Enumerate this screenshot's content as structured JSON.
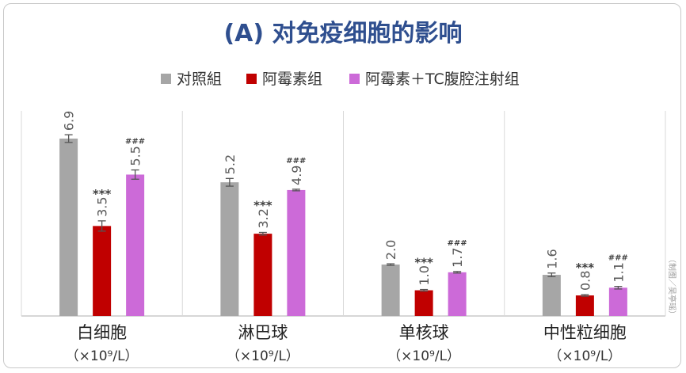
{
  "chart_data": {
    "type": "bar",
    "title": "(A) 对免疫细胞的影响",
    "credit": "（制图／吴亭瑶）",
    "categories": [
      {
        "name": "白细胞",
        "unit": "（×10⁹/L）"
      },
      {
        "name": "淋巴球",
        "unit": "（×10⁹/L）"
      },
      {
        "name": "单核球",
        "unit": "（×10⁹/L）"
      },
      {
        "name": "中性粒细胞",
        "unit": "（×10⁹/L）"
      }
    ],
    "series": [
      {
        "name": "对照組",
        "color": "#a6a6a6",
        "values": [
          6.9,
          5.2,
          2.0,
          1.6
        ],
        "labels": [
          "6.9",
          "5.2",
          "2.0",
          "1.6"
        ],
        "errors": [
          0.15,
          0.15,
          0.03,
          0.07
        ],
        "marks": [
          "",
          "",
          "",
          ""
        ]
      },
      {
        "name": "阿霉素组",
        "color": "#c00000",
        "values": [
          3.5,
          3.2,
          1.0,
          0.8
        ],
        "labels": [
          "3.5",
          "3.2",
          "1.0",
          "0.8"
        ],
        "errors": [
          0.2,
          0.05,
          0.03,
          0.03
        ],
        "marks": [
          "***",
          "***",
          "***",
          "***"
        ]
      },
      {
        "name": "阿霉素＋TC腹腔注射组",
        "color": "#cc6ad8",
        "values": [
          5.5,
          4.9,
          1.7,
          1.1
        ],
        "labels": [
          "5.5",
          "4.9",
          "1.7",
          "1.1"
        ],
        "errors": [
          0.18,
          0.03,
          0.03,
          0.05
        ],
        "marks": [
          "###",
          "###",
          "###",
          "###"
        ]
      }
    ],
    "ylim": [
      0,
      7.5
    ],
    "legend": "top",
    "grid": false
  }
}
